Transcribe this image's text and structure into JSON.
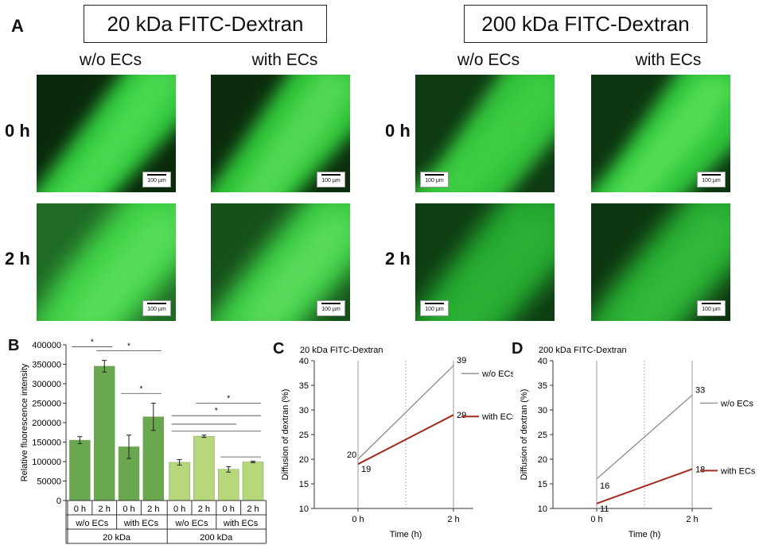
{
  "panel_a": {
    "letter": "A",
    "title_20": "20 kDa FITC-Dextran",
    "title_200": "200 kDa FITC-Dextran",
    "col_wo": "w/o ECs",
    "col_with": "with ECs",
    "row_0h": "0 h",
    "row_2h": "2 h",
    "scale_label": "100 µm"
  },
  "colors": {
    "dark_green": "#6aa84f",
    "light_green": "#b6d77a",
    "grey_line": "#8c8c8c",
    "red_line": "#a62b1f",
    "fluor": "#3fd43f"
  },
  "chart_data": [
    {
      "type": "bar",
      "panel": "B",
      "ylabel": "Relative fluorescence intensity",
      "ylim": [
        0,
        400000
      ],
      "yticks": [
        "0",
        "50000",
        "100000",
        "150000",
        "200000",
        "250000",
        "300000",
        "350000",
        "400000"
      ],
      "categories": [
        "0 h",
        "2 h",
        "0 h",
        "2 h",
        "0 h",
        "2 h",
        "0 h",
        "2 h"
      ],
      "group_labels": [
        "w/o ECs",
        "with ECs",
        "w/o ECs",
        "with ECs"
      ],
      "super_groups": [
        "20 kDa",
        "200 kDa"
      ],
      "values": [
        155000,
        345000,
        138000,
        215000,
        98000,
        165000,
        80000,
        99000
      ],
      "errors": [
        9000,
        15000,
        30000,
        35000,
        7000,
        3000,
        7000,
        2000
      ],
      "significance": "*"
    },
    {
      "type": "line",
      "panel": "C",
      "title": "20 kDa FITC-Dextran",
      "xlabel": "Time (h)",
      "ylabel": "Diffusion of dextran (%)",
      "ylim": [
        10,
        40
      ],
      "yticks": [
        "10",
        "15",
        "20",
        "25",
        "30",
        "35",
        "40"
      ],
      "xticks": [
        "0 h",
        "2 h"
      ],
      "series": [
        {
          "name": "w/o ECs",
          "x": [
            0,
            2
          ],
          "values": [
            20,
            39
          ],
          "labels": [
            "20",
            "39"
          ]
        },
        {
          "name": "with ECs",
          "x": [
            0,
            2
          ],
          "values": [
            19,
            29
          ],
          "labels": [
            "19",
            "29"
          ]
        }
      ]
    },
    {
      "type": "line",
      "panel": "D",
      "title": "200 kDa FITC-Dextran",
      "xlabel": "Time (h)",
      "ylabel": "Diffusion of dextran (%)",
      "ylim": [
        10,
        40
      ],
      "yticks": [
        "10",
        "15",
        "20",
        "25",
        "30",
        "35",
        "40"
      ],
      "xticks": [
        "0 h",
        "2 h"
      ],
      "series": [
        {
          "name": "w/o ECs",
          "x": [
            0,
            2
          ],
          "values": [
            16,
            33
          ],
          "labels": [
            "16",
            "33"
          ]
        },
        {
          "name": "with ECs",
          "x": [
            0,
            2
          ],
          "values": [
            11,
            18
          ],
          "labels": [
            "11",
            "18"
          ]
        }
      ]
    }
  ]
}
